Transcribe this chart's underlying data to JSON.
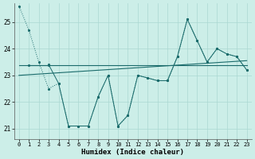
{
  "background_color": "#cceee8",
  "grid_color": "#aad8d2",
  "line_color": "#1a6b6b",
  "xlabel": "Humidex (Indice chaleur)",
  "x_values": [
    0,
    1,
    2,
    3,
    4,
    5,
    6,
    7,
    8,
    9,
    10,
    11,
    12,
    13,
    14,
    15,
    16,
    17,
    18,
    19,
    20,
    21,
    22,
    23
  ],
  "series1_y": [
    25.6,
    24.7,
    23.5,
    22.5,
    22.7,
    21.1,
    21.1,
    21.1,
    22.2,
    23.0,
    21.1,
    21.5,
    23.0,
    22.9,
    22.8,
    22.8,
    23.7,
    25.1,
    24.3,
    23.5,
    24.0,
    23.8,
    23.7,
    23.2
  ],
  "series2_x": [
    3,
    4,
    5,
    6,
    7,
    8,
    9,
    10,
    11,
    12,
    13,
    14,
    15,
    16,
    17,
    18,
    19,
    20,
    21,
    22,
    23
  ],
  "series2_y": [
    23.4,
    22.7,
    21.1,
    21.1,
    21.1,
    22.2,
    23.0,
    21.1,
    21.5,
    23.0,
    22.9,
    22.8,
    22.8,
    23.7,
    25.1,
    24.3,
    23.5,
    24.0,
    23.8,
    23.7,
    23.2
  ],
  "trend1_x": [
    0,
    23
  ],
  "trend1_y": [
    23.38,
    23.38
  ],
  "trend2_x": [
    0,
    23
  ],
  "trend2_y": [
    23.0,
    23.55
  ],
  "flat_line_x": [
    1,
    3
  ],
  "flat_line_y": [
    23.38,
    23.38
  ],
  "ylim": [
    20.6,
    25.7
  ],
  "xlim": [
    -0.5,
    23.5
  ],
  "yticks": [
    21,
    22,
    23,
    24,
    25
  ],
  "xticks": [
    0,
    1,
    2,
    3,
    4,
    5,
    6,
    7,
    8,
    9,
    10,
    11,
    12,
    13,
    14,
    15,
    16,
    17,
    18,
    19,
    20,
    21,
    22,
    23
  ]
}
